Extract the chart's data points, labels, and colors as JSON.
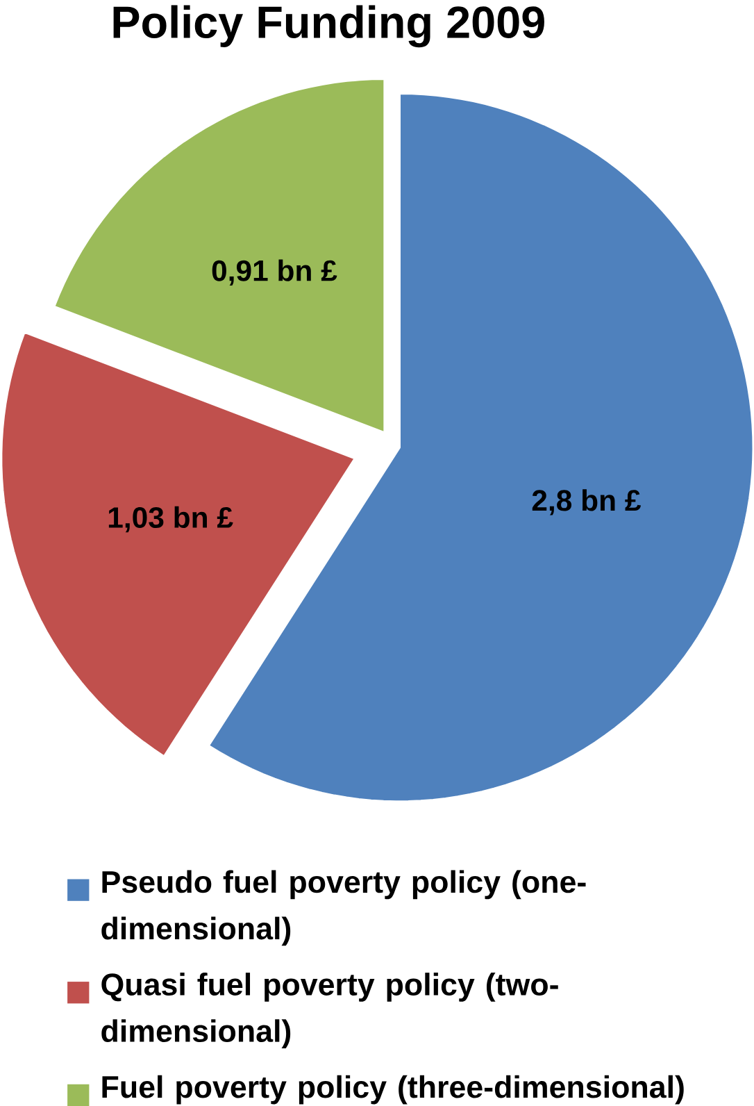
{
  "chart_data": {
    "type": "pie",
    "title": "Policy Funding 2009",
    "categories": [
      "Pseudo fuel poverty policy (one-dimensional)",
      "Quasi fuel poverty policy (two-dimensional)",
      "Fuel poverty policy (three-dimensional)"
    ],
    "values": [
      2.8,
      1.03,
      0.91
    ],
    "colors": [
      "#4f81bd",
      "#c0504d",
      "#9bbb59"
    ],
    "value_labels": [
      "2,8 bn £",
      "1,03 bn £",
      "0,91 bn £"
    ],
    "legend": "bottom"
  }
}
